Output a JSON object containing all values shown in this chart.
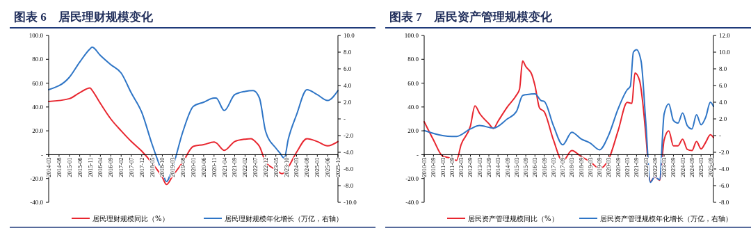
{
  "chart_data": [
    {
      "type": "line",
      "title": "图表 6　居民理财规模变化",
      "legend": "bottom",
      "xlim": [
        "2014-03",
        "2025-11"
      ],
      "xticks": [
        "2014-03",
        "2014-08",
        "2015-01",
        "2015-06",
        "2015-11",
        "2016-04",
        "2016-09",
        "2017-02",
        "2017-07",
        "2017-12",
        "2018-05",
        "2018-10",
        "2019-03",
        "2019-08",
        "2020-01",
        "2020-06",
        "2020-11",
        "2021-04",
        "2021-09",
        "2022-02",
        "2022-07",
        "2022-12",
        "2023-05",
        "2023-10",
        "2024-03",
        "2024-08",
        "2025-01",
        "2025-06",
        "2025-11"
      ],
      "ylim": [
        -40,
        100
      ],
      "yticks": [
        {
          "value": -40,
          "label": "-40.0"
        },
        {
          "value": -20,
          "label": "-20.0"
        },
        {
          "value": 0,
          "label": "-"
        },
        {
          "value": 20,
          "label": "20.0"
        },
        {
          "value": 40,
          "label": "40.0"
        },
        {
          "value": 60,
          "label": "60.0"
        },
        {
          "value": 80,
          "label": "80.0"
        },
        {
          "value": 100,
          "label": "100.0"
        }
      ],
      "y2lim": [
        -10,
        10
      ],
      "y2ticks": [
        {
          "value": -10,
          "label": "-10.0"
        },
        {
          "value": -8,
          "label": "-8.0"
        },
        {
          "value": -6,
          "label": "-6.0"
        },
        {
          "value": -4,
          "label": "-4.0"
        },
        {
          "value": -2,
          "label": "-2.0"
        },
        {
          "value": 0,
          "label": "-"
        },
        {
          "value": 2,
          "label": "2.0"
        },
        {
          "value": 4,
          "label": "4.0"
        },
        {
          "value": 6,
          "label": "6.0"
        },
        {
          "value": 8,
          "label": "8.0"
        },
        {
          "value": 10,
          "label": "10.0"
        }
      ],
      "series": [
        {
          "name": "居民理财规模同比（%）",
          "color": "#e8262f",
          "x": [
            "2014-03",
            "2015-01",
            "2015-06",
            "2015-11",
            "2015-12",
            "2016-04",
            "2016-09",
            "2017-02",
            "2017-07",
            "2017-12",
            "2018-05",
            "2018-10",
            "2018-12",
            "2019-03",
            "2019-08",
            "2020-01",
            "2020-06",
            "2020-11",
            "2020-12",
            "2021-04",
            "2021-09",
            "2022-02",
            "2022-05",
            "2022-07",
            "2022-09",
            "2022-12",
            "2023-05",
            "2023-08",
            "2023-10",
            "2024-03",
            "2024-08",
            "2025-01",
            "2025-06",
            "2025-11"
          ],
          "values": [
            44.6,
            47,
            52,
            56,
            54,
            43,
            30,
            20,
            11,
            3,
            -7,
            -19,
            -25,
            -18,
            -6,
            7,
            8.4,
            10.6,
            10,
            3.6,
            11,
            13,
            13.4,
            11,
            7,
            -6,
            -12.6,
            -16,
            -13,
            2,
            13.4,
            11,
            7.4,
            11
          ]
        },
        {
          "name": "居民理财规模年化增长（万亿，右轴）",
          "color": "#2e75c6",
          "axis": "y2",
          "x": [
            "2014-03",
            "2015-01",
            "2015-06",
            "2015-11",
            "2015-12",
            "2016-04",
            "2016-09",
            "2017-02",
            "2017-07",
            "2017-12",
            "2018-05",
            "2018-10",
            "2018-12",
            "2019-03",
            "2019-08",
            "2020-01",
            "2020-06",
            "2020-11",
            "2020-12",
            "2021-04",
            "2021-09",
            "2022-02",
            "2022-06",
            "2022-09",
            "2022-12",
            "2023-05",
            "2023-07",
            "2023-09",
            "2023-11",
            "2024-03",
            "2024-08",
            "2025-01",
            "2025-06",
            "2025-11"
          ],
          "values": [
            3.5,
            5,
            6.8,
            8.4,
            8.6,
            7.6,
            6.5,
            5.5,
            3.1,
            0.8,
            -3,
            -6.4,
            -7.5,
            -5.8,
            -1.5,
            1.5,
            2,
            2.5,
            2.5,
            1,
            2.9,
            3.3,
            3.4,
            2.5,
            -1.5,
            -3.5,
            -4.1,
            -4.7,
            -2.4,
            0.5,
            3.5,
            2.9,
            2.2,
            3.4
          ]
        }
      ]
    },
    {
      "type": "line",
      "title": "图表 7　居民资产管理规模变化",
      "legend": "bottom",
      "xlim": [
        "2010-03",
        "2025-11"
      ],
      "xticks": [
        "2010-03",
        "2010-09",
        "2011-03",
        "2011-09",
        "2012-03",
        "2012-09",
        "2013-03",
        "2013-09",
        "2014-03",
        "2014-09",
        "2015-03",
        "2015-09",
        "2016-03",
        "2016-09",
        "2017-03",
        "2017-09",
        "2018-03",
        "2018-09",
        "2019-03",
        "2019-09",
        "2020-03",
        "2020-09",
        "2021-03",
        "2021-09",
        "2022-03",
        "2022-09",
        "2023-03",
        "2023-09",
        "2024-03",
        "2024-09",
        "2025-03",
        "2025-09"
      ],
      "ylim": [
        -40,
        100
      ],
      "yticks": [
        {
          "value": -40,
          "label": "-40.0"
        },
        {
          "value": -20,
          "label": "-20.0"
        },
        {
          "value": 0,
          "label": "-"
        },
        {
          "value": 20,
          "label": "20.0"
        },
        {
          "value": 40,
          "label": "40.0"
        },
        {
          "value": 60,
          "label": "60.0"
        },
        {
          "value": 80,
          "label": "80.0"
        },
        {
          "value": 100,
          "label": "100.0"
        }
      ],
      "y2lim": [
        -8,
        12
      ],
      "y2ticks": [
        {
          "value": -8,
          "label": "-8.0"
        },
        {
          "value": -6,
          "label": "-6.0"
        },
        {
          "value": -4,
          "label": "-4.0"
        },
        {
          "value": -2,
          "label": "-2.0"
        },
        {
          "value": 0,
          "label": "-"
        },
        {
          "value": 2,
          "label": "2.0"
        },
        {
          "value": 4,
          "label": "4.0"
        },
        {
          "value": 6,
          "label": "6.0"
        },
        {
          "value": 8,
          "label": "8.0"
        },
        {
          "value": 10,
          "label": "10.0"
        },
        {
          "value": 12,
          "label": "12.0"
        }
      ],
      "series": [
        {
          "name": "居民资产管理规模同比（%）",
          "color": "#e8262f",
          "x": [
            "2010-03",
            "2010-09",
            "2011-03",
            "2011-09",
            "2011-12",
            "2012-03",
            "2012-09",
            "2012-12",
            "2013-03",
            "2013-09",
            "2013-12",
            "2014-03",
            "2014-09",
            "2015-03",
            "2015-05",
            "2015-07",
            "2015-09",
            "2016-01",
            "2016-03",
            "2016-06",
            "2016-09",
            "2017-03",
            "2017-09",
            "2018-03",
            "2018-09",
            "2019-03",
            "2019-09",
            "2020-03",
            "2020-09",
            "2021-03",
            "2021-06",
            "2021-08",
            "2021-11",
            "2022-01",
            "2022-03",
            "2022-06",
            "2022-09",
            "2022-12",
            "2023-03",
            "2023-06",
            "2023-09",
            "2023-12",
            "2024-03",
            "2024-06",
            "2024-09",
            "2024-12",
            "2025-03",
            "2025-06",
            "2025-09",
            "2025-11"
          ],
          "values": [
            27.7,
            12.4,
            -1.2,
            -3.2,
            -4.8,
            8.4,
            24,
            41,
            34.7,
            26,
            22,
            28,
            40,
            50,
            55,
            78.5,
            74,
            67,
            58,
            39,
            36,
            12.4,
            -5.6,
            3.4,
            -1.6,
            -6,
            -11.6,
            -3.6,
            20,
            43.8,
            43,
            68.5,
            62,
            44,
            18,
            -22.5,
            -18.5,
            -21.5,
            12.4,
            20,
            7.4,
            7.4,
            13,
            4.4,
            3.4,
            11,
            4.8,
            10.4,
            16.7,
            14.3
          ]
        },
        {
          "name": "居民资产管理规模年化增长（万亿，右轴）",
          "color": "#2e75c6",
          "axis": "y2",
          "x": [
            "2010-03",
            "2011-03",
            "2011-09",
            "2011-12",
            "2012-09",
            "2013-03",
            "2013-12",
            "2014-09",
            "2015-03",
            "2015-07",
            "2015-09",
            "2016-03",
            "2016-07",
            "2016-09",
            "2017-03",
            "2017-09",
            "2018-03",
            "2018-09",
            "2019-03",
            "2019-09",
            "2020-03",
            "2020-09",
            "2021-03",
            "2021-05",
            "2021-07",
            "2021-09",
            "2021-12",
            "2022-03",
            "2022-06",
            "2022-09",
            "2022-12",
            "2023-03",
            "2023-06",
            "2023-09",
            "2023-12",
            "2024-03",
            "2024-06",
            "2024-09",
            "2024-12",
            "2025-03",
            "2025-06",
            "2025-09",
            "2025-11"
          ],
          "values": [
            0.6,
            0,
            -0.1,
            -0.1,
            0.8,
            1.2,
            0.9,
            2,
            2.9,
            4.8,
            4.9,
            5,
            4.2,
            4.1,
            1.2,
            -1.1,
            0.4,
            -0.4,
            -0.9,
            -1.7,
            0.1,
            3.2,
            5.5,
            5.9,
            10,
            10.3,
            8.9,
            1.8,
            -5.6,
            -4.9,
            -5.3,
            2.6,
            3.8,
            1.8,
            1.5,
            2.7,
            1.2,
            0.8,
            2.5,
            1.3,
            2.2,
            4,
            3.5
          ]
        }
      ]
    }
  ]
}
